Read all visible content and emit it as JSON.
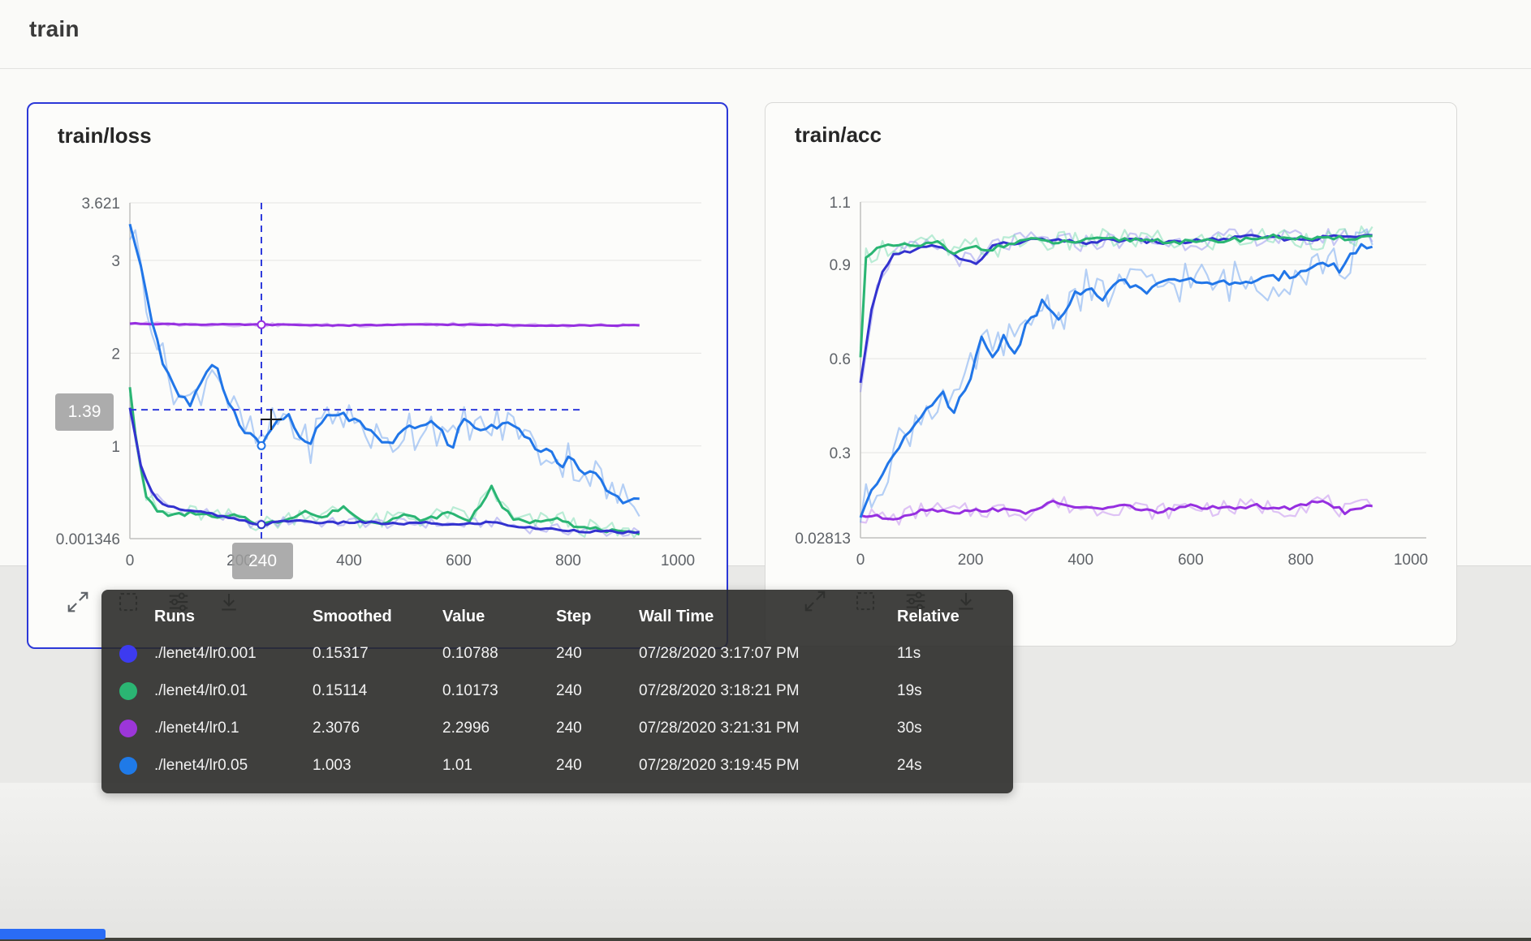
{
  "page": {
    "header_title": "train",
    "accent_color": "#2c38d8",
    "progress_bar_color": "#2a6cf5"
  },
  "cards": [
    {
      "title": "train/loss",
      "selected": true
    },
    {
      "title": "train/acc",
      "selected": false
    }
  ],
  "footer_icons": [
    {
      "id": "expand-icon"
    },
    {
      "id": "fit-domain-icon"
    },
    {
      "id": "display-settings-icon"
    },
    {
      "id": "download-icon"
    }
  ],
  "crosshair_tags": {
    "value_label": "1.39",
    "step_label": "240"
  },
  "tooltip": {
    "headers": [
      "Runs",
      "Smoothed",
      "Value",
      "Step",
      "Wall Time",
      "Relative"
    ],
    "rows": [
      {
        "color": "#3d3bf0",
        "run": "./lenet4/lr0.001",
        "smoothed": "0.15317",
        "value": "0.10788",
        "step": "240",
        "wall_time": "07/28/2020 3:17:07 PM",
        "relative": "11s"
      },
      {
        "color": "#2bb573",
        "run": "./lenet4/lr0.01",
        "smoothed": "0.15114",
        "value": "0.10173",
        "step": "240",
        "wall_time": "07/28/2020 3:18:21 PM",
        "relative": "19s"
      },
      {
        "color": "#9c36d9",
        "run": "./lenet4/lr0.1",
        "smoothed": "2.3076",
        "value": "2.2996",
        "step": "240",
        "wall_time": "07/28/2020 3:21:31 PM",
        "relative": "30s"
      },
      {
        "color": "#1f7ae8",
        "run": "./lenet4/lr0.05",
        "smoothed": "1.003",
        "value": "1.01",
        "step": "240",
        "wall_time": "07/28/2020 3:19:45 PM",
        "relative": "24s"
      }
    ]
  },
  "chart_data": [
    {
      "type": "line",
      "title": "train/loss",
      "xlabel": "step",
      "ylabel": "loss",
      "x_range": [
        0,
        1043
      ],
      "y_range": [
        0.001346,
        3.621
      ],
      "x_ticks": [
        {
          "v": 0,
          "label": "0"
        },
        {
          "v": 200,
          "label": "200"
        },
        {
          "v": 400,
          "label": "400"
        },
        {
          "v": 600,
          "label": "600"
        },
        {
          "v": 800,
          "label": "800"
        },
        {
          "v": 1000,
          "label": "1000"
        }
      ],
      "y_ticks": [
        {
          "v": 3.621,
          "label": "3.621"
        },
        {
          "v": 3,
          "label": "3"
        },
        {
          "v": 2,
          "label": "2"
        },
        {
          "v": 1,
          "label": "1"
        },
        {
          "v": 0.001346,
          "label": "0.001346"
        }
      ],
      "grid": true,
      "crosshair": {
        "step": 240,
        "value": 1.39
      },
      "marker_step": 240,
      "series": [
        {
          "name": "./lenet4/lr0.1",
          "color": "#962fe0",
          "raw_color": "#c492f0",
          "noise_amp": 0.022,
          "seed": 3,
          "marker_value": 2.3076,
          "points": [
            [
              0,
              2.32
            ],
            [
              120,
              2.31
            ],
            [
              240,
              2.3076
            ],
            [
              400,
              2.3
            ],
            [
              560,
              2.31
            ],
            [
              720,
              2.3
            ],
            [
              930,
              2.3
            ]
          ]
        },
        {
          "name": "./lenet4/lr0.01",
          "color": "#2ab573",
          "raw_color": "#82dfb6",
          "noise_amp": 0.1,
          "seed": 2,
          "marker_value": 0.15114,
          "points": [
            [
              0,
              1.65
            ],
            [
              15,
              0.9
            ],
            [
              30,
              0.45
            ],
            [
              50,
              0.3
            ],
            [
              80,
              0.25
            ],
            [
              120,
              0.28
            ],
            [
              160,
              0.22
            ],
            [
              200,
              0.25
            ],
            [
              240,
              0.151
            ],
            [
              280,
              0.2
            ],
            [
              320,
              0.3
            ],
            [
              350,
              0.22
            ],
            [
              390,
              0.35
            ],
            [
              420,
              0.2
            ],
            [
              460,
              0.18
            ],
            [
              500,
              0.25
            ],
            [
              540,
              0.2
            ],
            [
              580,
              0.28
            ],
            [
              620,
              0.2
            ],
            [
              660,
              0.55
            ],
            [
              680,
              0.35
            ],
            [
              700,
              0.2
            ],
            [
              740,
              0.18
            ],
            [
              780,
              0.24
            ],
            [
              820,
              0.12
            ],
            [
              860,
              0.1
            ],
            [
              900,
              0.06
            ],
            [
              930,
              0.05
            ]
          ]
        },
        {
          "name": "./lenet4/lr0.001",
          "color": "#3332cf",
          "raw_color": "#9b99ef",
          "noise_amp": 0.06,
          "seed": 1,
          "marker_value": 0.15317,
          "points": [
            [
              0,
              1.4
            ],
            [
              20,
              0.8
            ],
            [
              40,
              0.5
            ],
            [
              60,
              0.38
            ],
            [
              100,
              0.3
            ],
            [
              140,
              0.28
            ],
            [
              180,
              0.22
            ],
            [
              240,
              0.153
            ],
            [
              300,
              0.2
            ],
            [
              360,
              0.17
            ],
            [
              420,
              0.18
            ],
            [
              480,
              0.16
            ],
            [
              540,
              0.17
            ],
            [
              600,
              0.15
            ],
            [
              660,
              0.18
            ],
            [
              720,
              0.12
            ],
            [
              780,
              0.1
            ],
            [
              840,
              0.08
            ],
            [
              900,
              0.07
            ],
            [
              930,
              0.06
            ]
          ]
        },
        {
          "name": "./lenet4/lr0.05",
          "color": "#2176e8",
          "raw_color": "#78a9f0",
          "noise_amp": 0.22,
          "seed": 4,
          "marker_value": 1.003,
          "points": [
            [
              0,
              3.35
            ],
            [
              15,
              3.1
            ],
            [
              35,
              2.5
            ],
            [
              60,
              1.9
            ],
            [
              90,
              1.55
            ],
            [
              110,
              1.45
            ],
            [
              140,
              1.75
            ],
            [
              155,
              1.95
            ],
            [
              175,
              1.55
            ],
            [
              195,
              1.3
            ],
            [
              215,
              1.15
            ],
            [
              240,
              1.003
            ],
            [
              265,
              1.25
            ],
            [
              285,
              1.35
            ],
            [
              305,
              1.15
            ],
            [
              325,
              0.98
            ],
            [
              345,
              1.2
            ],
            [
              365,
              1.35
            ],
            [
              395,
              1.32
            ],
            [
              425,
              1.22
            ],
            [
              445,
              1.1
            ],
            [
              465,
              0.98
            ],
            [
              485,
              1.05
            ],
            [
              505,
              1.28
            ],
            [
              525,
              1.12
            ],
            [
              545,
              1.32
            ],
            [
              565,
              1.18
            ],
            [
              585,
              0.95
            ],
            [
              605,
              1.25
            ],
            [
              625,
              1.28
            ],
            [
              645,
              1.12
            ],
            [
              665,
              1.25
            ],
            [
              685,
              1.18
            ],
            [
              705,
              1.28
            ],
            [
              725,
              1.1
            ],
            [
              745,
              0.88
            ],
            [
              765,
              1.0
            ],
            [
              785,
              0.78
            ],
            [
              805,
              0.9
            ],
            [
              825,
              0.68
            ],
            [
              845,
              0.75
            ],
            [
              865,
              0.55
            ],
            [
              885,
              0.45
            ],
            [
              905,
              0.4
            ],
            [
              930,
              0.42
            ]
          ]
        }
      ]
    },
    {
      "type": "line",
      "title": "train/acc",
      "xlabel": "step",
      "ylabel": "acc",
      "x_range": [
        0,
        1028
      ],
      "y_range": [
        0.02813,
        1.1
      ],
      "x_ticks": [
        {
          "v": 0,
          "label": "0"
        },
        {
          "v": 200,
          "label": "200"
        },
        {
          "v": 400,
          "label": "400"
        },
        {
          "v": 600,
          "label": "600"
        },
        {
          "v": 800,
          "label": "800"
        },
        {
          "v": 1000,
          "label": "1000"
        }
      ],
      "y_ticks": [
        {
          "v": 1.1,
          "label": "1.1"
        },
        {
          "v": 0.9,
          "label": "0.9"
        },
        {
          "v": 0.6,
          "label": "0.6"
        },
        {
          "v": 0.3,
          "label": "0.3"
        },
        {
          "v": 0.02813,
          "label": "0.02813"
        }
      ],
      "grid": true,
      "series": [
        {
          "name": "./lenet4/lr0.1",
          "color": "#962fe0",
          "raw_color": "#c492f0",
          "noise_amp": 0.028,
          "seed": 7,
          "points": [
            [
              0,
              0.1
            ],
            [
              60,
              0.09
            ],
            [
              120,
              0.12
            ],
            [
              180,
              0.11
            ],
            [
              240,
              0.12
            ],
            [
              300,
              0.11
            ],
            [
              350,
              0.14
            ],
            [
              420,
              0.12
            ],
            [
              480,
              0.13
            ],
            [
              540,
              0.11
            ],
            [
              600,
              0.13
            ],
            [
              660,
              0.12
            ],
            [
              720,
              0.13
            ],
            [
              780,
              0.12
            ],
            [
              840,
              0.15
            ],
            [
              880,
              0.11
            ],
            [
              930,
              0.13
            ]
          ]
        },
        {
          "name": "./lenet4/lr0.05",
          "color": "#2176e8",
          "raw_color": "#78a9f0",
          "noise_amp": 0.07,
          "seed": 8,
          "points": [
            [
              0,
              0.1
            ],
            [
              30,
              0.2
            ],
            [
              60,
              0.3
            ],
            [
              90,
              0.38
            ],
            [
              120,
              0.45
            ],
            [
              150,
              0.48
            ],
            [
              170,
              0.43
            ],
            [
              200,
              0.55
            ],
            [
              220,
              0.66
            ],
            [
              240,
              0.6
            ],
            [
              260,
              0.68
            ],
            [
              280,
              0.62
            ],
            [
              300,
              0.7
            ],
            [
              330,
              0.78
            ],
            [
              360,
              0.74
            ],
            [
              400,
              0.82
            ],
            [
              440,
              0.8
            ],
            [
              480,
              0.85
            ],
            [
              520,
              0.82
            ],
            [
              560,
              0.84
            ],
            [
              600,
              0.86
            ],
            [
              640,
              0.83
            ],
            [
              680,
              0.85
            ],
            [
              720,
              0.84
            ],
            [
              760,
              0.86
            ],
            [
              800,
              0.88
            ],
            [
              840,
              0.92
            ],
            [
              870,
              0.88
            ],
            [
              900,
              0.95
            ],
            [
              930,
              0.96
            ]
          ]
        },
        {
          "name": "./lenet4/lr0.001",
          "color": "#3332cf",
          "raw_color": "#9b99ef",
          "noise_amp": 0.03,
          "seed": 5,
          "points": [
            [
              0,
              0.52
            ],
            [
              20,
              0.75
            ],
            [
              40,
              0.88
            ],
            [
              60,
              0.93
            ],
            [
              100,
              0.95
            ],
            [
              140,
              0.96
            ],
            [
              170,
              0.93
            ],
            [
              210,
              0.9
            ],
            [
              240,
              0.96
            ],
            [
              280,
              0.97
            ],
            [
              320,
              0.98
            ],
            [
              400,
              0.97
            ],
            [
              480,
              0.98
            ],
            [
              560,
              0.97
            ],
            [
              640,
              0.98
            ],
            [
              720,
              0.99
            ],
            [
              800,
              0.98
            ],
            [
              870,
              0.99
            ],
            [
              930,
              0.99
            ]
          ]
        },
        {
          "name": "./lenet4/lr0.01",
          "color": "#2ab573",
          "raw_color": "#82dfb6",
          "noise_amp": 0.035,
          "seed": 6,
          "points": [
            [
              0,
              0.6
            ],
            [
              10,
              0.93
            ],
            [
              30,
              0.95
            ],
            [
              60,
              0.96
            ],
            [
              100,
              0.96
            ],
            [
              140,
              0.97
            ],
            [
              170,
              0.93
            ],
            [
              200,
              0.96
            ],
            [
              240,
              0.95
            ],
            [
              300,
              0.98
            ],
            [
              360,
              0.97
            ],
            [
              440,
              0.98
            ],
            [
              520,
              0.98
            ],
            [
              600,
              0.97
            ],
            [
              680,
              0.98
            ],
            [
              760,
              0.99
            ],
            [
              840,
              0.98
            ],
            [
              930,
              0.99
            ]
          ]
        }
      ]
    }
  ]
}
